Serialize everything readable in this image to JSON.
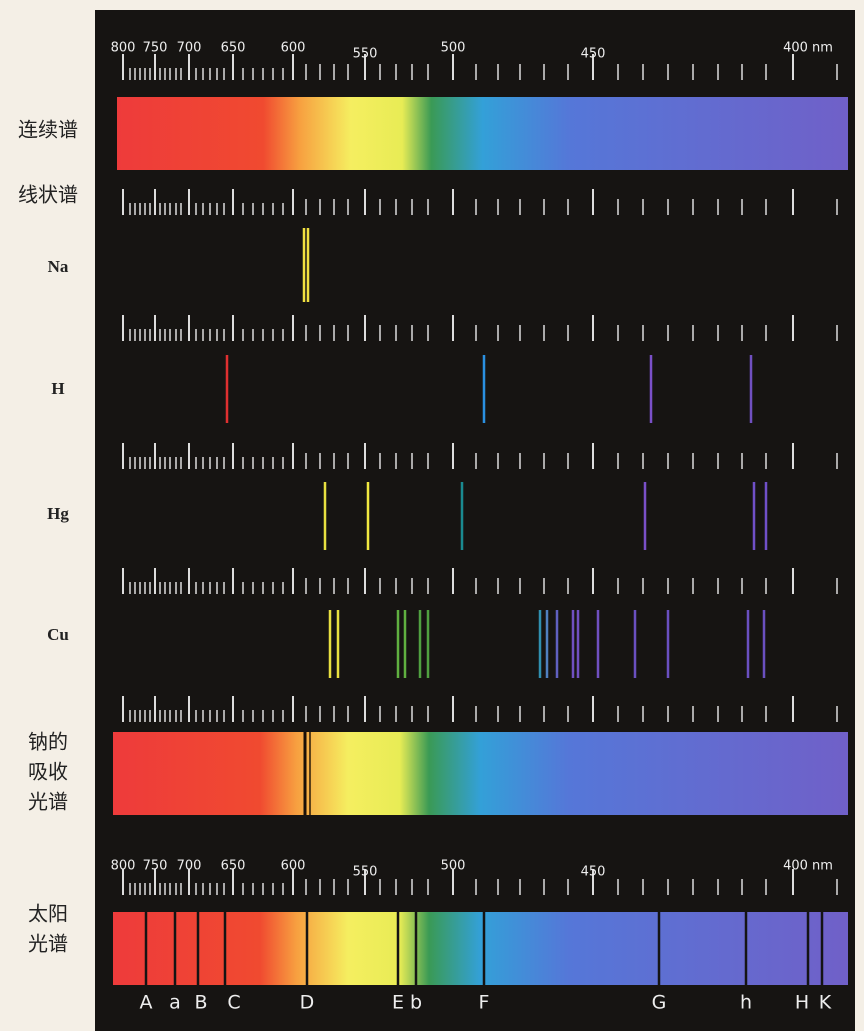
{
  "scale": {
    "labels": [
      "800",
      "750",
      "700",
      "650",
      "600",
      "550",
      "500",
      "450",
      "400 nm"
    ]
  },
  "rows": {
    "continuous": "连续谱",
    "line": "线状谱",
    "na": "Na",
    "h": "H",
    "hg": "Hg",
    "cu": "Cu",
    "absorption": [
      "钠的",
      "吸收",
      "光谱"
    ],
    "solar": [
      "太阳",
      "光谱"
    ]
  },
  "fraunhofer": [
    "A",
    "a",
    "B",
    "C",
    "D",
    "E",
    "b",
    "F",
    "G",
    "h",
    "H",
    "K"
  ]
}
